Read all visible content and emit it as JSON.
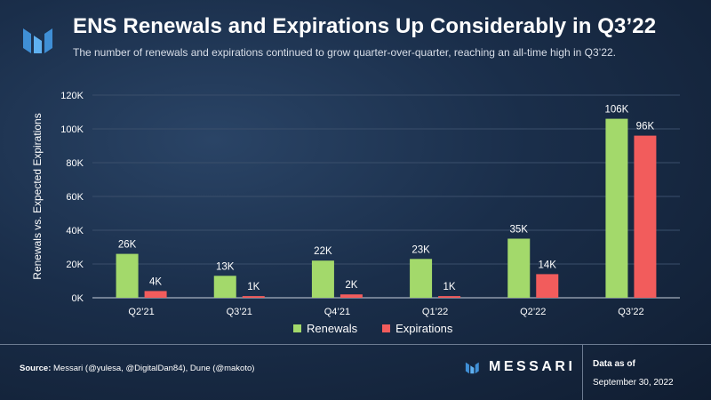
{
  "header": {
    "logo_icon": "messari-logo-icon",
    "title": "ENS Renewals and Expirations Up Considerably in Q3’22",
    "subtitle": "The number of renewals and expirations continued to grow quarter-over-quarter, reaching an all-time high in Q3’22."
  },
  "colors": {
    "renewals": "#a3d96b",
    "expirations": "#f25c5c",
    "grid": "#3b4f6b",
    "axis_text": "#ffffff"
  },
  "chart_data": {
    "type": "bar",
    "categories": [
      "Q2’21",
      "Q3’21",
      "Q4’21",
      "Q1’22",
      "Q2’22",
      "Q3’22"
    ],
    "series": [
      {
        "name": "Renewals",
        "values": [
          26000,
          13000,
          22000,
          23000,
          35000,
          106000
        ],
        "labels": [
          "26K",
          "13K",
          "22K",
          "23K",
          "35K",
          "106K"
        ]
      },
      {
        "name": "Expirations",
        "values": [
          4000,
          1000,
          2000,
          1000,
          14000,
          96000
        ],
        "labels": [
          "4K",
          "1K",
          "2K",
          "1K",
          "14K",
          "96K"
        ]
      }
    ],
    "ylabel": "Renewals vs. Expected Expirations",
    "ylim": [
      0,
      120000
    ],
    "yticks": [
      0,
      20000,
      40000,
      60000,
      80000,
      100000,
      120000
    ],
    "ytick_labels": [
      "0K",
      "20K",
      "40K",
      "60K",
      "80K",
      "100K",
      "120K"
    ],
    "grid": true,
    "legend_position": "bottom-center"
  },
  "legend": {
    "renewals_label": "Renewals",
    "expirations_label": "Expirations"
  },
  "footer": {
    "source_label": "Source:",
    "source_text": " Messari (@yulesa, @DigitalDan84), Dune (@makoto)",
    "brand_icon": "messari-logo-icon",
    "brand_name": "MESSARI",
    "data_as_of_label": "Data as of",
    "data_date": "September 30, 2022"
  }
}
